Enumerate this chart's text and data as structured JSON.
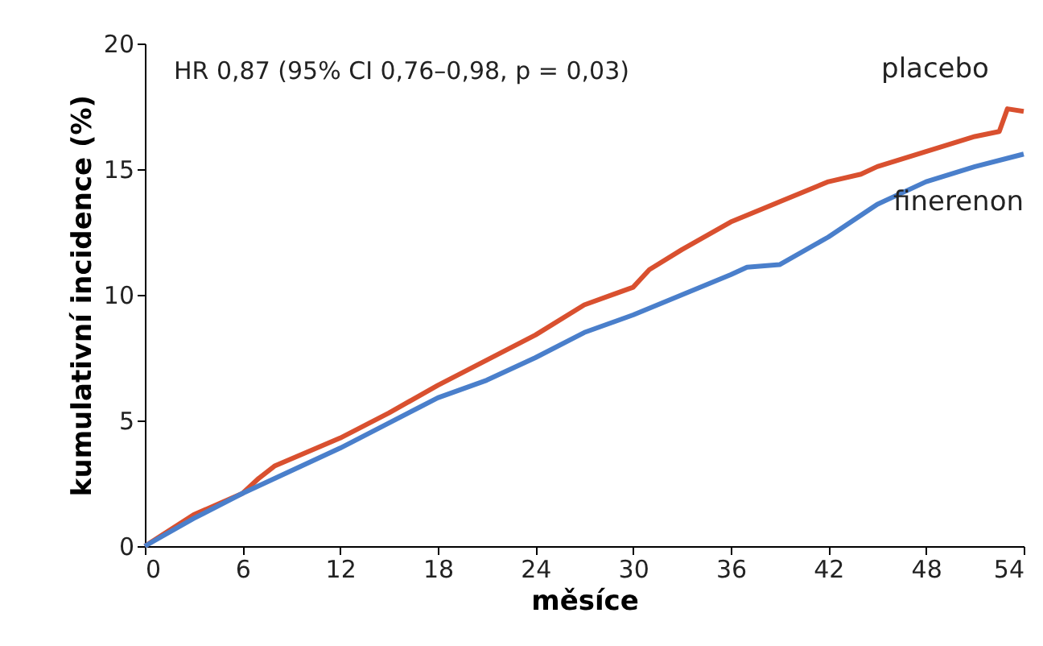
{
  "chart_data": {
    "type": "line",
    "xlabel": "měsíce",
    "ylabel": "kumulativní incidence (%)",
    "annotations": [
      "HR 0,87 (95% CI 0,76–0,98, p = 0,03)"
    ],
    "xlim": [
      0,
      54
    ],
    "xticks": [
      0,
      6,
      12,
      18,
      24,
      30,
      36,
      42,
      48,
      54
    ],
    "ylim": [
      0,
      20
    ],
    "yticks": [
      0,
      5,
      10,
      15,
      20
    ],
    "grid": false,
    "marker": "none",
    "line_style": "solid",
    "series": [
      {
        "name": "placebo",
        "color": "#d9502f",
        "x": [
          0,
          3,
          6,
          7,
          8,
          12,
          15,
          18,
          21,
          24,
          27,
          30,
          31,
          33,
          36,
          39,
          42,
          44,
          45,
          48,
          51,
          52.5,
          53,
          54
        ],
        "values": [
          0,
          1.25,
          2.1,
          2.7,
          3.2,
          4.3,
          5.3,
          6.4,
          7.4,
          8.4,
          9.6,
          10.3,
          11.0,
          11.8,
          12.9,
          13.7,
          14.5,
          14.8,
          15.1,
          15.7,
          16.3,
          16.5,
          17.4,
          17.3
        ]
      },
      {
        "name": "finerenon",
        "color": "#4a7fcb",
        "x": [
          0,
          3,
          6,
          8,
          12,
          15,
          18,
          21,
          24,
          27,
          30,
          33,
          36,
          37,
          39,
          42,
          45,
          48,
          51,
          54
        ],
        "values": [
          0,
          1.1,
          2.1,
          2.7,
          3.9,
          4.9,
          5.9,
          6.6,
          7.5,
          8.5,
          9.2,
          10.0,
          10.8,
          11.1,
          11.2,
          12.3,
          13.6,
          14.5,
          15.1,
          15.6
        ]
      }
    ]
  }
}
